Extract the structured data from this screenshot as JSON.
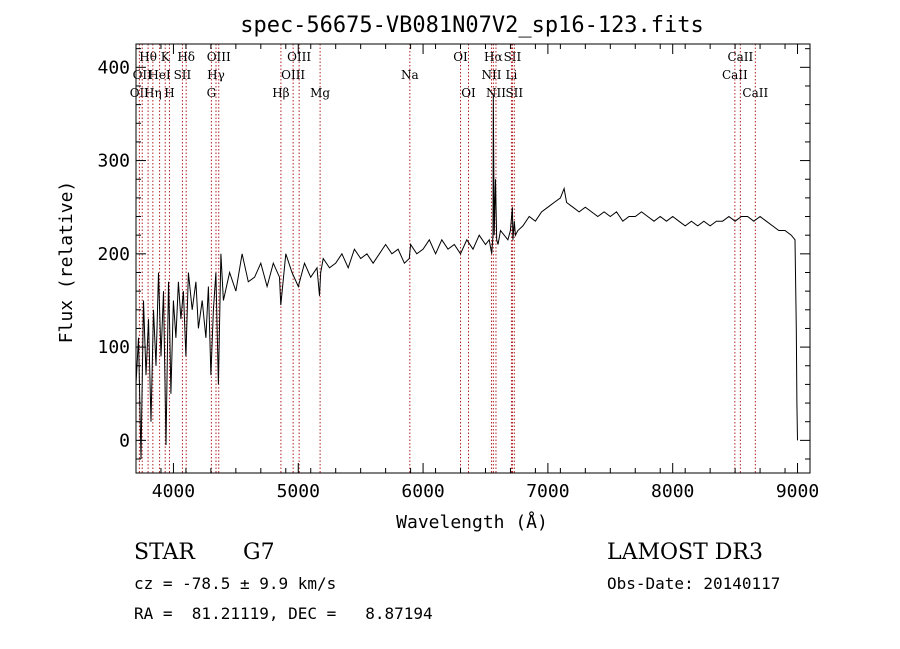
{
  "chart_data": {
    "type": "line",
    "title": "spec-56675-VB081N07V2_sp16-123.fits",
    "xlabel": "Wavelength (Å)",
    "ylabel": "Flux (relative)",
    "xlim": [
      3700,
      9100
    ],
    "ylim": [
      -35,
      425
    ],
    "xticks": [
      4000,
      5000,
      6000,
      7000,
      8000,
      9000
    ],
    "yticks": [
      0,
      100,
      200,
      300,
      400
    ],
    "series": [
      {
        "name": "spectrum",
        "x": [
          3700,
          3720,
          3740,
          3760,
          3780,
          3800,
          3820,
          3840,
          3860,
          3880,
          3900,
          3920,
          3940,
          3960,
          3970,
          3980,
          4000,
          4020,
          4040,
          4060,
          4080,
          4100,
          4120,
          4150,
          4180,
          4200,
          4230,
          4260,
          4280,
          4300,
          4320,
          4340,
          4360,
          4380,
          4400,
          4450,
          4500,
          4550,
          4600,
          4650,
          4700,
          4750,
          4800,
          4850,
          4860,
          4900,
          4950,
          5000,
          5050,
          5100,
          5150,
          5170,
          5180,
          5200,
          5250,
          5300,
          5350,
          5400,
          5450,
          5500,
          5550,
          5600,
          5650,
          5700,
          5750,
          5800,
          5850,
          5890,
          5900,
          5950,
          6000,
          6050,
          6100,
          6150,
          6200,
          6250,
          6300,
          6350,
          6400,
          6450,
          6500,
          6530,
          6550,
          6560,
          6563,
          6570,
          6580,
          6590,
          6600,
          6620,
          6650,
          6680,
          6700,
          6716,
          6720,
          6731,
          6740,
          6760,
          6800,
          6850,
          6900,
          6950,
          7000,
          7050,
          7100,
          7130,
          7150,
          7200,
          7250,
          7300,
          7350,
          7400,
          7450,
          7500,
          7550,
          7600,
          7650,
          7700,
          7750,
          7800,
          7850,
          7900,
          7950,
          8000,
          8050,
          8100,
          8150,
          8200,
          8250,
          8300,
          8350,
          8400,
          8450,
          8500,
          8550,
          8600,
          8650,
          8700,
          8750,
          8800,
          8850,
          8900,
          8950,
          8980,
          8990,
          8995,
          9000
        ],
        "values": [
          60,
          110,
          -20,
          150,
          70,
          130,
          20,
          140,
          80,
          180,
          90,
          160,
          -5,
          170,
          120,
          50,
          150,
          110,
          170,
          130,
          160,
          90,
          180,
          140,
          170,
          120,
          150,
          110,
          165,
          70,
          140,
          180,
          60,
          200,
          150,
          180,
          160,
          200,
          170,
          175,
          190,
          165,
          190,
          175,
          145,
          200,
          180,
          165,
          190,
          175,
          185,
          155,
          180,
          195,
          185,
          190,
          200,
          185,
          205,
          195,
          200,
          190,
          200,
          210,
          200,
          205,
          190,
          195,
          210,
          200,
          205,
          215,
          200,
          215,
          205,
          210,
          200,
          215,
          205,
          220,
          210,
          215,
          200,
          220,
          370,
          220,
          280,
          215,
          210,
          225,
          220,
          215,
          225,
          250,
          215,
          235,
          220,
          225,
          230,
          240,
          235,
          245,
          250,
          255,
          260,
          270,
          255,
          250,
          245,
          250,
          245,
          240,
          245,
          240,
          245,
          235,
          240,
          240,
          245,
          240,
          235,
          240,
          235,
          240,
          235,
          230,
          235,
          230,
          235,
          230,
          235,
          235,
          240,
          235,
          240,
          240,
          235,
          240,
          235,
          230,
          225,
          225,
          220,
          215,
          120,
          40,
          0
        ]
      }
    ],
    "line_markers": [
      {
        "wavelength": 3727,
        "row": 2,
        "label": "OII"
      },
      {
        "wavelength": 3750,
        "row": 1,
        "label": "OII"
      },
      {
        "wavelength": 3797,
        "row": 0,
        "label": "Hθ"
      },
      {
        "wavelength": 3835,
        "row": 2,
        "label": "Hη"
      },
      {
        "wavelength": 3889,
        "row": 1,
        "label": "HeI"
      },
      {
        "wavelength": 3934,
        "row": 0,
        "label": "K"
      },
      {
        "wavelength": 3968,
        "row": 2,
        "label": "H"
      },
      {
        "wavelength": 4072,
        "row": 1,
        "label": "SII"
      },
      {
        "wavelength": 4102,
        "row": 0,
        "label": "Hδ"
      },
      {
        "wavelength": 4304,
        "row": 2,
        "label": "G"
      },
      {
        "wavelength": 4341,
        "row": 1,
        "label": "Hγ"
      },
      {
        "wavelength": 4363,
        "row": 0,
        "label": "OIII"
      },
      {
        "wavelength": 4861,
        "row": 2,
        "label": "Hβ"
      },
      {
        "wavelength": 4959,
        "row": 1,
        "label": "OIII"
      },
      {
        "wavelength": 5007,
        "row": 0,
        "label": "OIII"
      },
      {
        "wavelength": 5175,
        "row": 2,
        "label": "Mg"
      },
      {
        "wavelength": 5894,
        "row": 1,
        "label": "Na"
      },
      {
        "wavelength": 6300,
        "row": 0,
        "label": "OI"
      },
      {
        "wavelength": 6364,
        "row": 2,
        "label": "OI"
      },
      {
        "wavelength": 6548,
        "row": 1,
        "label": "NII"
      },
      {
        "wavelength": 6563,
        "row": 0,
        "label": "Hα"
      },
      {
        "wavelength": 6584,
        "row": 2,
        "label": "NII"
      },
      {
        "wavelength": 6708,
        "row": 1,
        "label": "Li"
      },
      {
        "wavelength": 6716,
        "row": 0,
        "label": "SII"
      },
      {
        "wavelength": 6731,
        "row": 2,
        "label": "SII"
      },
      {
        "wavelength": 8498,
        "row": 1,
        "label": "CaII"
      },
      {
        "wavelength": 8542,
        "row": 0,
        "label": "CaII"
      },
      {
        "wavelength": 8662,
        "row": 2,
        "label": "CaII"
      }
    ],
    "colors": {
      "spectrum": "#000000",
      "marker_line": "#b22222",
      "axes": "#000000"
    }
  },
  "info": {
    "object_class": "STAR",
    "subclass": "G7",
    "redshift": "cz = -78.5 ± 9.9 km/s",
    "coords": "RA =  81.21119, DEC =   8.87194",
    "survey": "LAMOST DR3",
    "obs_date": "Obs-Date: 20140117"
  }
}
